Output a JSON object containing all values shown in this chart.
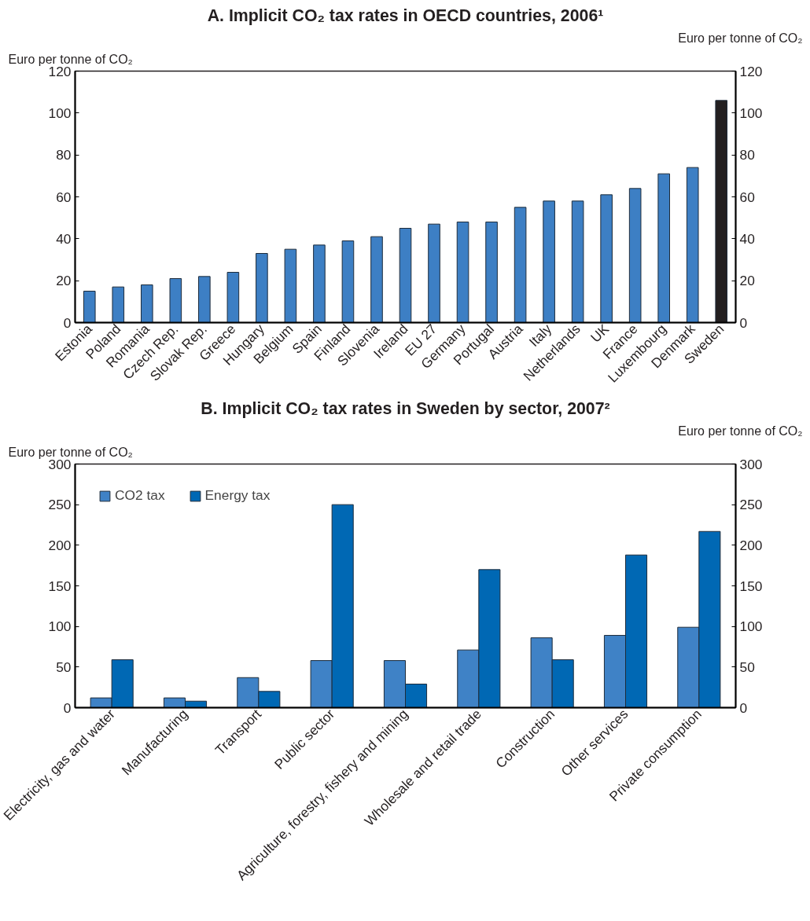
{
  "chart_data": [
    {
      "type": "bar",
      "title": "A. Implicit CO₂ tax rates in OECD countries, 2006¹",
      "ylabel": "Euro per tonne of CO₂",
      "y2label": "Euro per tonne of CO₂",
      "categories": [
        "Estonia",
        "Poland",
        "Romania",
        "Czech Rep.",
        "Slovak Rep.",
        "Greece",
        "Hungary",
        "Belgium",
        "Spain",
        "Finland",
        "Slovenia",
        "Ireland",
        "EU 27",
        "Germany",
        "Portugal",
        "Austria",
        "Italy",
        "Netherlands",
        "UK",
        "France",
        "Luxembourg",
        "Denmark",
        "Sweden"
      ],
      "values": [
        15,
        17,
        18,
        21,
        22,
        24,
        33,
        35,
        37,
        39,
        41,
        45,
        47,
        48,
        48,
        55,
        58,
        58,
        61,
        64,
        71,
        74,
        106
      ],
      "colors": [
        "#3d7fc4",
        "#3d7fc4",
        "#3d7fc4",
        "#3d7fc4",
        "#3d7fc4",
        "#3d7fc4",
        "#3d7fc4",
        "#3d7fc4",
        "#3d7fc4",
        "#3d7fc4",
        "#3d7fc4",
        "#3d7fc4",
        "#3d7fc4",
        "#3d7fc4",
        "#3d7fc4",
        "#3d7fc4",
        "#3d7fc4",
        "#3d7fc4",
        "#3d7fc4",
        "#3d7fc4",
        "#3d7fc4",
        "#3d7fc4",
        "#231f20"
      ],
      "ylim": [
        0,
        120
      ],
      "yticks": [
        0,
        20,
        40,
        60,
        80,
        100,
        120
      ],
      "y2lim": [
        0,
        120
      ],
      "y2ticks": [
        0,
        20,
        40,
        60,
        80,
        100,
        120
      ],
      "grid": false,
      "legend": false
    },
    {
      "type": "bar",
      "title": "B. Implicit CO₂ tax rates in Sweden by sector, 2007²",
      "ylabel": "Euro per tonne of CO₂",
      "y2label": "Euro per tonne of CO₂",
      "categories": [
        "Electricity, gas and water",
        "Manufacturing",
        "Transport",
        "Public sector",
        "Agriculture, forestry, fishery and mining",
        "Wholesale and retail trade",
        "Construction",
        "Other services",
        "Private consumption"
      ],
      "series": [
        {
          "name": "CO2 tax",
          "color": "#3f82c6",
          "values": [
            12,
            12,
            37,
            58,
            58,
            71,
            86,
            89,
            99
          ]
        },
        {
          "name": "Energy tax",
          "color": "#0068b4",
          "values": [
            59,
            8,
            20,
            250,
            29,
            170,
            59,
            188,
            217
          ]
        }
      ],
      "ylim": [
        0,
        300
      ],
      "yticks": [
        0,
        50,
        100,
        150,
        200,
        250,
        300
      ],
      "y2lim": [
        0,
        300
      ],
      "y2ticks": [
        0,
        50,
        100,
        150,
        200,
        250,
        300
      ],
      "grid": false,
      "legend": "top left"
    }
  ]
}
